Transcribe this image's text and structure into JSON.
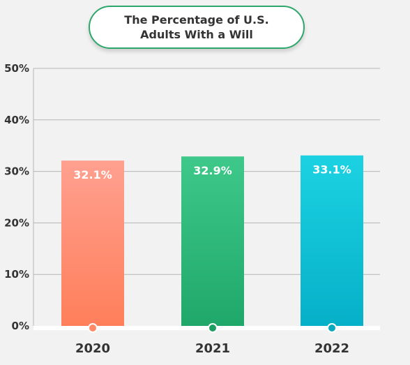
{
  "chart_data": {
    "type": "bar",
    "title_lines": [
      "The Percentage of U.S.",
      "Adults With a Will"
    ],
    "categories": [
      "2020",
      "2021",
      "2022"
    ],
    "values": [
      32.1,
      32.9,
      33.1
    ],
    "value_labels": [
      "32.1%",
      "32.9%",
      "33.1%"
    ],
    "ylim": [
      0,
      50
    ],
    "yticks": [
      0,
      10,
      20,
      30,
      40,
      50
    ],
    "ytick_labels": [
      "0%",
      "10%",
      "20%",
      "30%",
      "40%",
      "50%"
    ],
    "xlabel": "",
    "ylabel": "",
    "grid": true,
    "legend": "none",
    "colors": {
      "bars": [
        {
          "top": "#ffa090",
          "bottom": "#ff7f5a",
          "marker": "#ff8a65"
        },
        {
          "top": "#3ec88a",
          "bottom": "#1fa86a",
          "marker": "#1a9e62"
        },
        {
          "top": "#1cd2e2",
          "bottom": "#06b0c8",
          "marker": "#0aa9bd"
        }
      ],
      "title_border": "#2ea86a",
      "gridline": "#b5b5b5",
      "background": "#f2f2f2"
    }
  }
}
